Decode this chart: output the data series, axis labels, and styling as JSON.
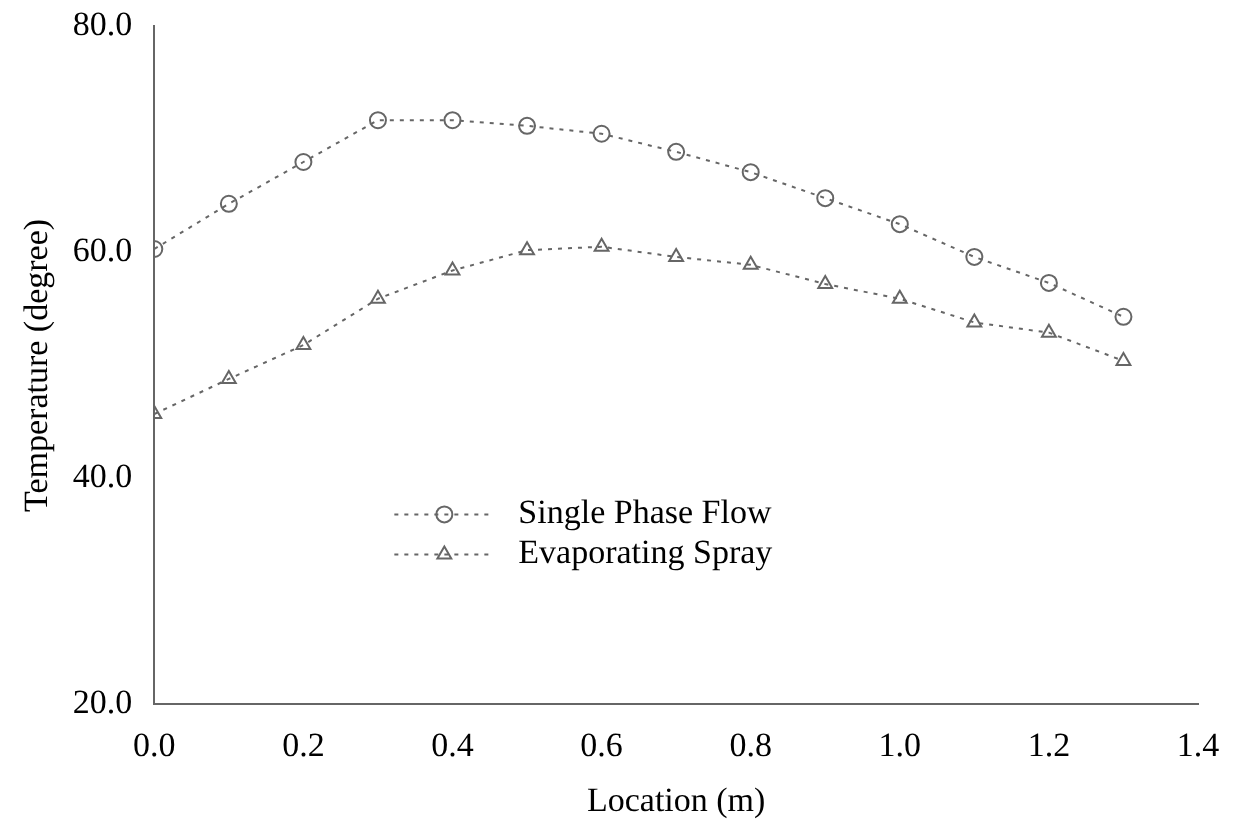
{
  "chart_data": {
    "type": "line",
    "xlabel": "Location (m)",
    "ylabel": "Temperature (degree)",
    "x": [
      0,
      0.1,
      0.2,
      0.3,
      0.4,
      0.5,
      0.6,
      0.7,
      0.8,
      0.9,
      1.0,
      1.1,
      1.2,
      1.3
    ],
    "series": [
      {
        "name": "Single Phase Flow",
        "color": "#666666",
        "marker": "circle",
        "values": [
          60.3,
          64.3,
          68,
          71.7,
          71.7,
          71.2,
          70.5,
          68.9,
          67.1,
          64.8,
          62.5,
          59.6,
          57.3,
          54.3
        ]
      },
      {
        "name": "Evaporating Spray",
        "color": "#666666",
        "marker": "triangle",
        "values": [
          45.7,
          48.8,
          51.8,
          55.9,
          58.4,
          60.2,
          60.5,
          59.6,
          58.9,
          57.2,
          55.9,
          53.8,
          52.9,
          50.4
        ]
      }
    ],
    "xlim": [
      0,
      1.4
    ],
    "xticks": [
      {
        "value": 0,
        "label": "0.0"
      },
      0.2,
      0.4,
      0.6,
      0.8,
      {
        "value": 1,
        "label": "1.0"
      },
      1.2,
      1.4
    ],
    "ylim": [
      20,
      80
    ],
    "yticks": [
      {
        "value": 20,
        "label": "20.0"
      },
      {
        "value": 40,
        "label": "40.0"
      },
      {
        "value": 60,
        "label": "60.0"
      },
      {
        "value": 80,
        "label": "80.0"
      }
    ],
    "grid": false,
    "legend": "bottom",
    "line_style": "dotted"
  }
}
